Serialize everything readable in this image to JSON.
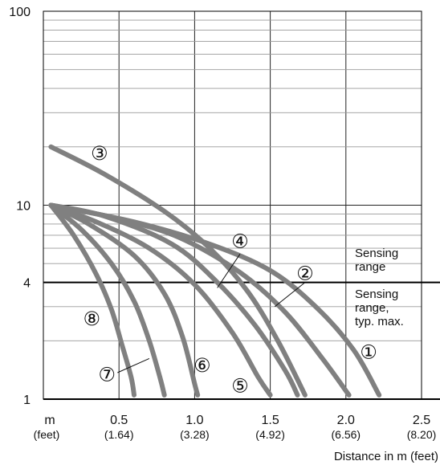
{
  "chart_data": {
    "type": "line",
    "title": "",
    "xlabel": "Distance in m (feet)",
    "ylabel": "",
    "x_unit": "m",
    "x_unit_sub": "(feet)",
    "xlim": [
      0,
      2.5
    ],
    "ylim": [
      1,
      100
    ],
    "y_scale": "log",
    "grid": true,
    "x_ticks": [
      {
        "value": 0.5,
        "label": "0.5",
        "sub": "(1.64)"
      },
      {
        "value": 1.0,
        "label": "1.0",
        "sub": "(3.28)"
      },
      {
        "value": 1.5,
        "label": "1.5",
        "sub": "(4.92)"
      },
      {
        "value": 2.0,
        "label": "2.0",
        "sub": "(6.56)"
      },
      {
        "value": 2.5,
        "label": "2.5",
        "sub": "(8.20)"
      }
    ],
    "y_ticks": [
      {
        "value": 1,
        "label": "1"
      },
      {
        "value": 4,
        "label": "4"
      },
      {
        "value": 10,
        "label": "10"
      },
      {
        "value": 100,
        "label": "100"
      }
    ],
    "threshold": {
      "value": 4,
      "label_above": [
        "Sensing",
        "range"
      ],
      "label_below": [
        "Sensing",
        "range,",
        "typ. max."
      ]
    },
    "series": [
      {
        "name": "①",
        "points": [
          [
            0.05,
            10
          ],
          [
            0.6,
            8.2
          ],
          [
            1.1,
            6.3
          ],
          [
            1.5,
            4.6
          ],
          [
            1.8,
            3.0
          ],
          [
            2.05,
            1.8
          ],
          [
            2.22,
            1.05
          ]
        ]
      },
      {
        "name": "②",
        "points": [
          [
            0.05,
            10
          ],
          [
            0.5,
            8.5
          ],
          [
            0.9,
            6.8
          ],
          [
            1.3,
            4.5
          ],
          [
            1.6,
            2.8
          ],
          [
            1.85,
            1.6
          ],
          [
            2.02,
            1.05
          ]
        ]
      },
      {
        "name": "③",
        "points": [
          [
            0.05,
            20
          ],
          [
            0.4,
            14.5
          ],
          [
            0.8,
            9.3
          ],
          [
            1.1,
            6.0
          ],
          [
            1.35,
            3.6
          ],
          [
            1.55,
            2.0
          ],
          [
            1.73,
            1.05
          ]
        ]
      },
      {
        "name": "④",
        "points": [
          [
            0.05,
            10
          ],
          [
            0.4,
            8.8
          ],
          [
            0.85,
            6.3
          ],
          [
            1.15,
            4.0
          ],
          [
            1.4,
            2.4
          ],
          [
            1.6,
            1.4
          ],
          [
            1.68,
            1.05
          ]
        ]
      },
      {
        "name": "⑤",
        "points": [
          [
            0.05,
            10
          ],
          [
            0.35,
            8.2
          ],
          [
            0.7,
            6.0
          ],
          [
            1.0,
            3.9
          ],
          [
            1.25,
            2.2
          ],
          [
            1.42,
            1.3
          ],
          [
            1.5,
            1.05
          ]
        ]
      },
      {
        "name": "⑥",
        "points": [
          [
            0.05,
            10
          ],
          [
            0.3,
            8.0
          ],
          [
            0.6,
            5.5
          ],
          [
            0.8,
            3.5
          ],
          [
            0.92,
            2.1
          ],
          [
            1.0,
            1.2
          ],
          [
            1.02,
            1.05
          ]
        ]
      },
      {
        "name": "⑦",
        "points": [
          [
            0.05,
            10
          ],
          [
            0.25,
            7.5
          ],
          [
            0.45,
            5.0
          ],
          [
            0.6,
            3.2
          ],
          [
            0.7,
            2.0
          ],
          [
            0.77,
            1.3
          ],
          [
            0.8,
            1.05
          ]
        ]
      },
      {
        "name": "⑧",
        "points": [
          [
            0.05,
            10
          ],
          [
            0.2,
            7.0
          ],
          [
            0.35,
            4.4
          ],
          [
            0.45,
            2.9
          ],
          [
            0.52,
            1.9
          ],
          [
            0.58,
            1.3
          ],
          [
            0.6,
            1.05
          ]
        ]
      }
    ],
    "markers": [
      {
        "label": "①",
        "x": 2.15,
        "y": 1.75
      },
      {
        "label": "②",
        "x": 1.73,
        "y": 4.45
      },
      {
        "label": "③",
        "x": 0.37,
        "y": 18.5
      },
      {
        "label": "④",
        "x": 1.3,
        "y": 6.5
      },
      {
        "label": "⑤",
        "x": 1.3,
        "y": 1.17
      },
      {
        "label": "⑥",
        "x": 1.05,
        "y": 1.49
      },
      {
        "label": "⑦",
        "x": 0.42,
        "y": 1.34
      },
      {
        "label": "⑧",
        "x": 0.32,
        "y": 2.6
      }
    ],
    "leaders": [
      {
        "from": [
          1.3,
          5.6
        ],
        "to": [
          1.15,
          3.75
        ]
      },
      {
        "from": [
          1.73,
          4.0
        ],
        "to": [
          1.53,
          3.0
        ]
      },
      {
        "from": [
          0.49,
          1.37
        ],
        "to": [
          0.7,
          1.62
        ]
      }
    ]
  }
}
